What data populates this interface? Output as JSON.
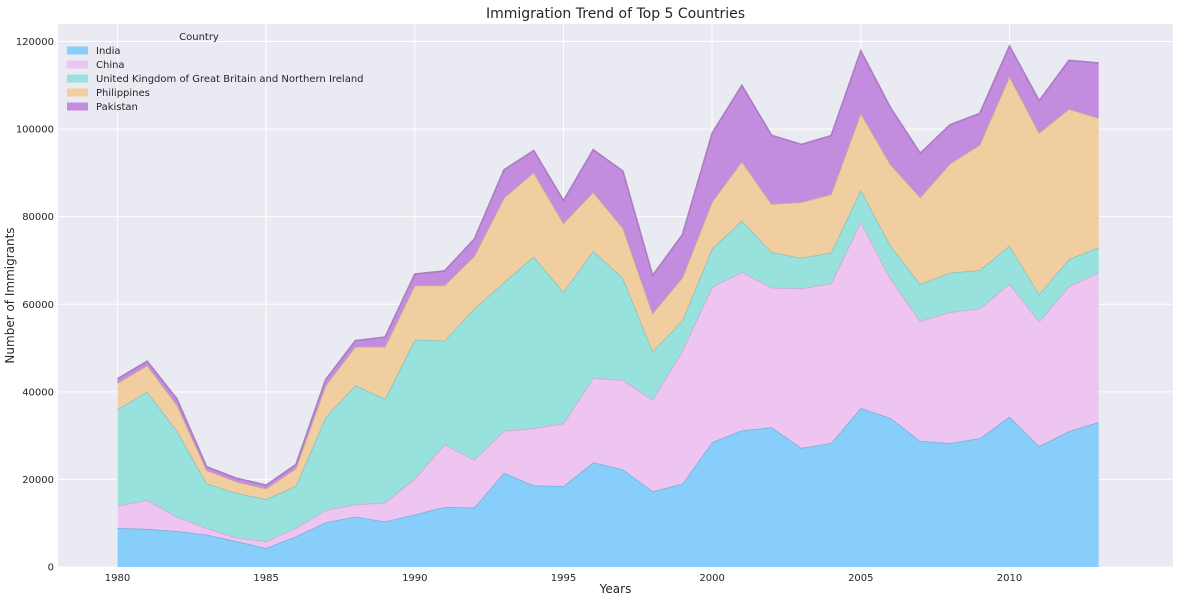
{
  "chart_data": {
    "type": "area",
    "stacked": true,
    "title": "Immigration Trend of Top 5 Countries",
    "xlabel": "Years",
    "ylabel": "Number of Immigrants",
    "xlim": [
      1978,
      2015.5
    ],
    "ylim": [
      0,
      124000
    ],
    "xticks": [
      1980,
      1985,
      1990,
      1995,
      2000,
      2005,
      2010
    ],
    "yticks": [
      0,
      20000,
      40000,
      60000,
      80000,
      100000,
      120000
    ],
    "grid": true,
    "legend": {
      "title": "Country",
      "placement": "top-left"
    },
    "x": [
      1980,
      1981,
      1982,
      1983,
      1984,
      1985,
      1986,
      1987,
      1988,
      1989,
      1990,
      1991,
      1992,
      1993,
      1994,
      1995,
      1996,
      1997,
      1998,
      1999,
      2000,
      2001,
      2002,
      2003,
      2004,
      2005,
      2006,
      2007,
      2008,
      2009,
      2010,
      2011,
      2012,
      2013
    ],
    "series": [
      {
        "name": "India",
        "color": "#87CEFA",
        "values": [
          8900,
          8700,
          8200,
          7400,
          5900,
          4300,
          7000,
          10200,
          11500,
          10400,
          12000,
          13700,
          13600,
          21500,
          18600,
          18500,
          23900,
          22300,
          17300,
          19000,
          28500,
          31200,
          31900,
          27200,
          28300,
          36300,
          34000,
          28800,
          28300,
          29400,
          34300,
          27600,
          31000,
          33100
        ]
      },
      {
        "name": "China",
        "color": "#EEC4F1",
        "values": [
          5100,
          6600,
          3300,
          1500,
          800,
          1600,
          1900,
          2800,
          2800,
          4300,
          8200,
          14300,
          10900,
          9600,
          13100,
          14300,
          19300,
          20400,
          20900,
          30400,
          35500,
          36200,
          31900,
          36400,
          36500,
          42500,
          31900,
          27400,
          29900,
          29600,
          30400,
          28500,
          33100,
          34100
        ]
      },
      {
        "name": "United Kingdom of Great Britain and Northern Ireland",
        "color": "#98E2DE",
        "values": [
          22000,
          24700,
          19600,
          10200,
          10200,
          9600,
          9600,
          21200,
          27200,
          23700,
          31700,
          23700,
          34500,
          33900,
          39200,
          30000,
          29000,
          23300,
          11100,
          6900,
          8700,
          11700,
          8100,
          7000,
          7000,
          7300,
          7500,
          8400,
          9000,
          8800,
          8700,
          6200,
          6200,
          5800
        ]
      },
      {
        "name": "Philippines",
        "color": "#F0CEA0",
        "values": [
          6000,
          6000,
          5900,
          3000,
          2600,
          2400,
          4000,
          7200,
          8800,
          11900,
          12400,
          12600,
          12000,
          19300,
          19200,
          15700,
          13400,
          11400,
          8600,
          9800,
          10700,
          13500,
          11000,
          12700,
          13300,
          17500,
          18500,
          19800,
          24900,
          28600,
          38600,
          36800,
          34300,
          29500
        ]
      },
      {
        "name": "Pakistan",
        "color": "#C38CDF",
        "values": [
          1000,
          1000,
          1400,
          800,
          800,
          800,
          900,
          1400,
          1400,
          2200,
          2600,
          3300,
          3900,
          6400,
          5000,
          5200,
          9700,
          13000,
          8700,
          9800,
          15700,
          17400,
          15700,
          13200,
          13400,
          14300,
          13000,
          10100,
          8900,
          7200,
          7000,
          7400,
          11100,
          12600
        ]
      }
    ]
  }
}
